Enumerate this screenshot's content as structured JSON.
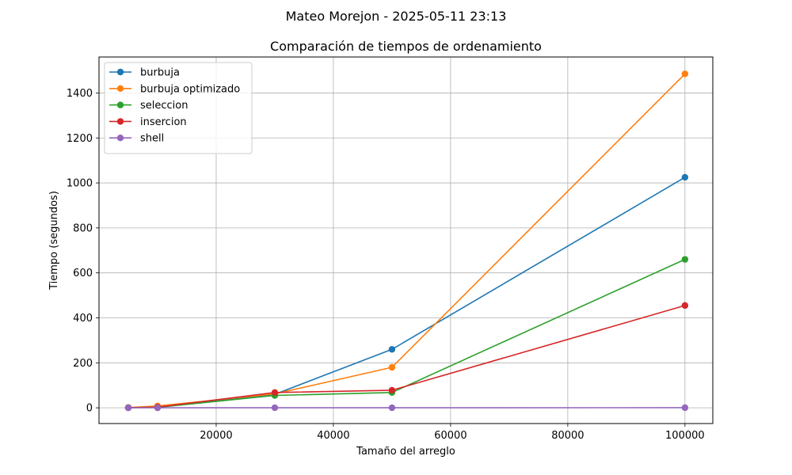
{
  "figure": {
    "suptitle": "Mateo Morejon - 2025-05-11 23:13"
  },
  "chart_data": {
    "type": "line",
    "title": "Comparación de tiempos de ordenamiento",
    "xlabel": "Tamaño del arreglo",
    "ylabel": "Tiempo (segundos)",
    "xlim": [
      0,
      104750
    ],
    "ylim": [
      -70,
      1560
    ],
    "xticks": [
      20000,
      40000,
      60000,
      80000,
      100000
    ],
    "yticks": [
      0,
      200,
      400,
      600,
      800,
      1000,
      1200,
      1400
    ],
    "grid": true,
    "legend_position": "top-left",
    "x": [
      5000,
      10000,
      30000,
      50000,
      100000
    ],
    "series": [
      {
        "name": "burbuja",
        "color": "#1f77b4",
        "values": [
          0.8,
          4,
          60,
          260,
          1025
        ]
      },
      {
        "name": "burbuja optimizado",
        "color": "#ff7f0e",
        "values": [
          1,
          8,
          62,
          180,
          1485
        ]
      },
      {
        "name": "seleccion",
        "color": "#2ca02c",
        "values": [
          0.5,
          2,
          55,
          68,
          660
        ]
      },
      {
        "name": "insercion",
        "color": "#d62728",
        "values": [
          0.5,
          3,
          68,
          78,
          455
        ]
      },
      {
        "name": "shell",
        "color": "#9467bd",
        "values": [
          0,
          0,
          0.1,
          0.2,
          0.5
        ]
      }
    ]
  }
}
